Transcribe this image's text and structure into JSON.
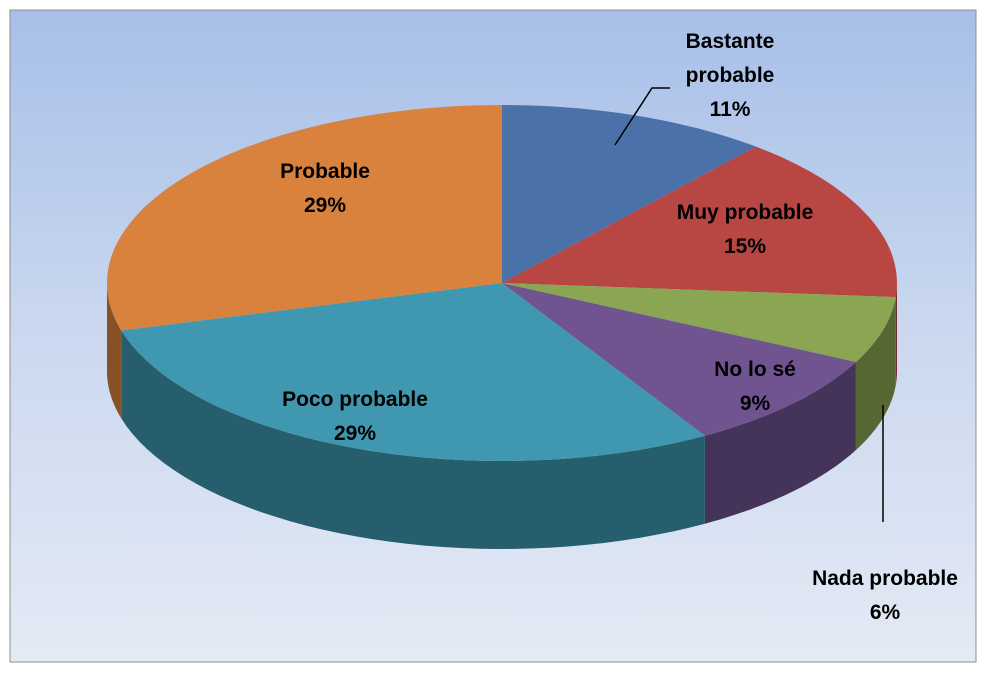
{
  "chart_data": {
    "type": "pie",
    "categories": [
      "Bastante probable",
      "Muy probable",
      "Nada probable",
      "No lo sé",
      "Poco probable",
      "Probable"
    ],
    "values": [
      11,
      15,
      6,
      9,
      29,
      29
    ],
    "value_labels": [
      "11%",
      "15%",
      "6%",
      "9%",
      "29%",
      "29%"
    ],
    "colors": [
      "#4a72a8",
      "#b84642",
      "#8aa653",
      "#70548f",
      "#3f98b0",
      "#d9823d"
    ]
  }
}
